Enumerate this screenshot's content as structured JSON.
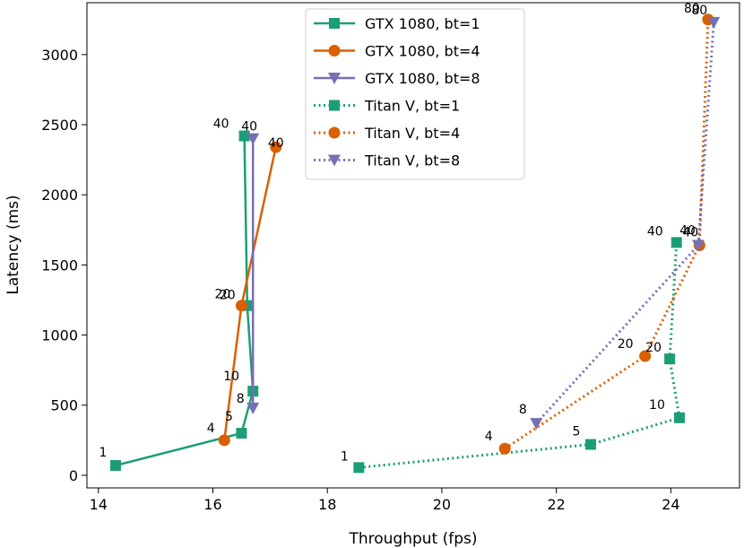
{
  "chart_data": {
    "type": "line",
    "title": "",
    "xlabel": "Throughput (fps)",
    "ylabel": "Latency (ms)",
    "xlim": [
      13.8,
      25.2
    ],
    "ylim": [
      -90,
      3370
    ],
    "xticks": [
      14,
      16,
      18,
      20,
      22,
      24
    ],
    "yticks": [
      0,
      500,
      1000,
      1500,
      2000,
      2500,
      3000
    ],
    "legend_position": "top-center",
    "series": [
      {
        "name": "GTX 1080, bt=1",
        "color": "#1b9e77",
        "linestyle": "solid",
        "marker": "square",
        "points": [
          {
            "x": 14.3,
            "y": 70,
            "label": "1"
          },
          {
            "x": 16.5,
            "y": 300,
            "label": "5"
          },
          {
            "x": 16.7,
            "y": 600,
            "label": "10"
          },
          {
            "x": 16.6,
            "y": 1210,
            "label": "20"
          },
          {
            "x": 16.55,
            "y": 2420,
            "label": "40"
          }
        ]
      },
      {
        "name": "GTX 1080, bt=4",
        "color": "#d95f02",
        "linestyle": "solid",
        "marker": "circle",
        "points": [
          {
            "x": 16.2,
            "y": 250,
            "label": "4"
          },
          {
            "x": 16.5,
            "y": 1210,
            "label": "20"
          },
          {
            "x": 17.1,
            "y": 2340,
            "label": "40"
          }
        ]
      },
      {
        "name": "GTX 1080, bt=8",
        "color": "#7570b3",
        "linestyle": "solid",
        "marker": "triangle",
        "points": [
          {
            "x": 16.7,
            "y": 480,
            "label": "8"
          },
          {
            "x": 16.7,
            "y": 2400,
            "label": "40"
          }
        ]
      },
      {
        "name": "Titan V, bt=1",
        "color": "#1b9e77",
        "linestyle": "dotted",
        "marker": "square",
        "points": [
          {
            "x": 18.55,
            "y": 55,
            "label": "1"
          },
          {
            "x": 22.6,
            "y": 220,
            "label": "5"
          },
          {
            "x": 24.15,
            "y": 410,
            "label": "10"
          },
          {
            "x": 23.98,
            "y": 830,
            "label": "20"
          },
          {
            "x": 24.1,
            "y": 1660,
            "label": "40"
          }
        ]
      },
      {
        "name": "Titan V, bt=4",
        "color": "#d95f02",
        "linestyle": "dotted",
        "marker": "circle",
        "points": [
          {
            "x": 21.1,
            "y": 190,
            "label": "4"
          },
          {
            "x": 23.55,
            "y": 850,
            "label": "20"
          },
          {
            "x": 24.5,
            "y": 1640,
            "label": "40"
          },
          {
            "x": 24.65,
            "y": 3250,
            "label": "80"
          }
        ]
      },
      {
        "name": "Titan V, bt=8",
        "color": "#7570b3",
        "linestyle": "dotted",
        "marker": "triangle",
        "points": [
          {
            "x": 21.65,
            "y": 370,
            "label": "8"
          },
          {
            "x": 24.48,
            "y": 1640,
            "label": "40"
          },
          {
            "x": 24.75,
            "y": 3230,
            "label": "80"
          }
        ]
      }
    ]
  }
}
